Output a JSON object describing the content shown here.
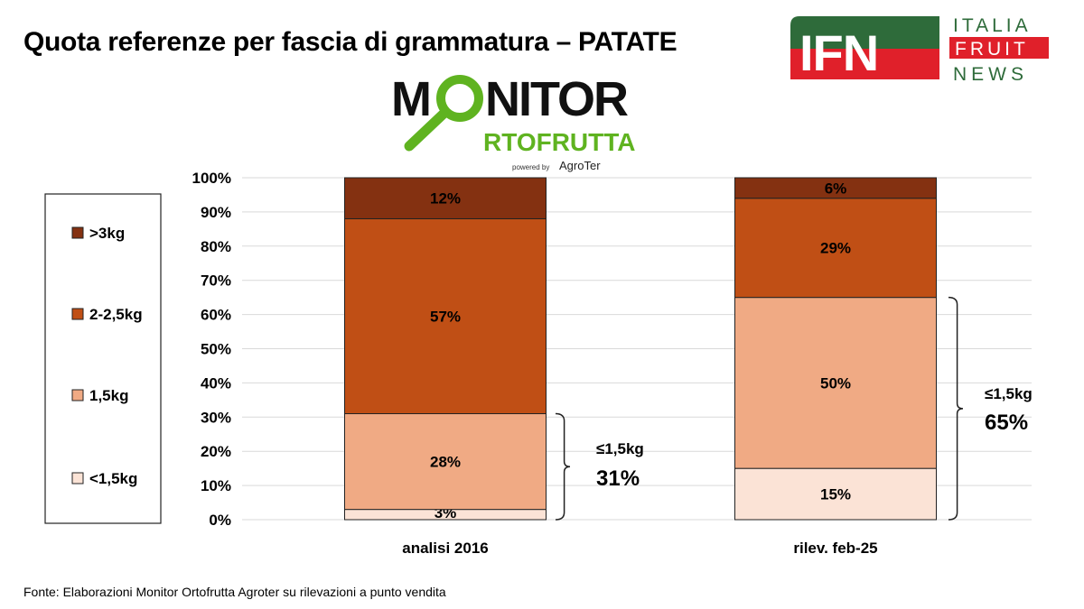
{
  "title": "Quota referenze per fascia di grammatura – PATATE",
  "source": "Fonte: Elaborazioni Monitor Ortofrutta Agroter su rilevazioni a punto vendita",
  "logos": {
    "monitor": {
      "line1": "MONITOR",
      "line2": "ORTOFRUTTA",
      "tagline": "powered by AgroTer",
      "colors": {
        "dark": "#111111",
        "green": "#5fb320"
      }
    },
    "ifn": {
      "mark": "IFN",
      "line1": "ITALIA",
      "line2": "FRUIT",
      "line3": "NEWS",
      "colors": {
        "green": "#2e6b3a",
        "red": "#e0202a"
      }
    }
  },
  "chart_data": {
    "type": "bar",
    "stacked": true,
    "categories": [
      "analisi 2016",
      "rilev. feb-25"
    ],
    "series": [
      {
        "name": "<1,5kg",
        "values": [
          3,
          15
        ],
        "color": "#fbe3d6"
      },
      {
        "name": "1,5kg",
        "values": [
          28,
          50
        ],
        "color": "#f0aa84"
      },
      {
        "name": "2-2,5kg",
        "values": [
          57,
          29
        ],
        "color": "#c04f15"
      },
      {
        "name": ">3kg",
        "values": [
          12,
          6
        ],
        "color": "#843111"
      }
    ],
    "data_labels": [
      [
        "3%",
        "28%",
        "57%",
        "12%"
      ],
      [
        "15%",
        "50%",
        "29%",
        "6%"
      ]
    ],
    "yticks": [
      "0%",
      "10%",
      "20%",
      "30%",
      "40%",
      "50%",
      "60%",
      "70%",
      "80%",
      "90%",
      "100%"
    ],
    "ylim": [
      0,
      100
    ],
    "grid": true,
    "legend_position": "left",
    "annotations": [
      {
        "category": "analisi 2016",
        "label": "≤1,5kg",
        "value": "31%"
      },
      {
        "category": "rilev. feb-25",
        "label": "≤1,5kg",
        "value": "65%"
      }
    ]
  }
}
